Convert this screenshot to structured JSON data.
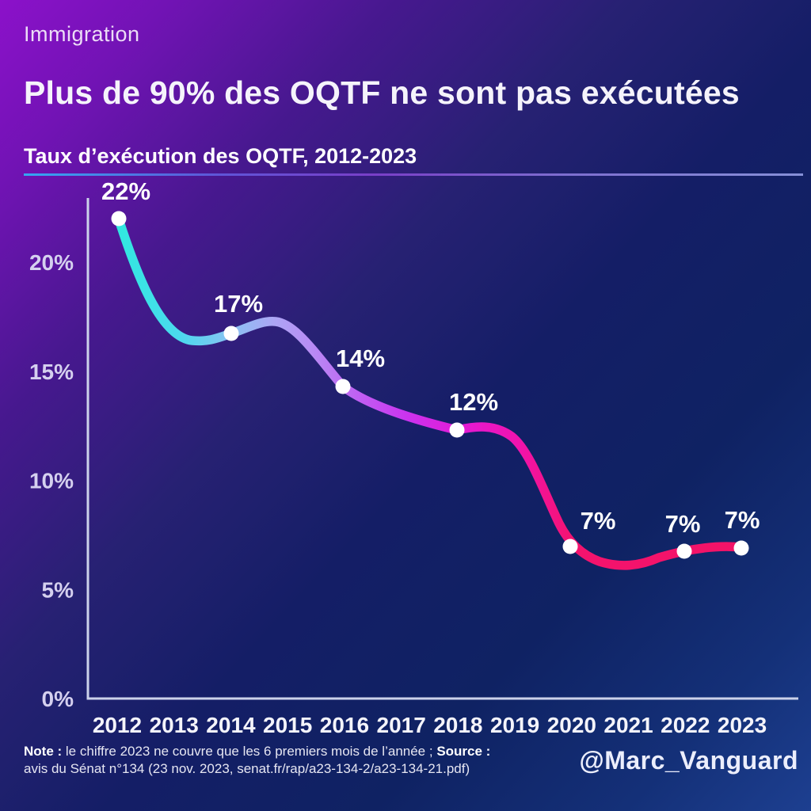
{
  "page": {
    "category": "Immigration",
    "title": "Plus de 90% des OQTF ne sont pas exécutées",
    "subtitle": "Taux d’exécution des OQTF, 2012-2023",
    "handle": "@Marc_Vanguard",
    "footer": {
      "note_label": "Note :",
      "note_text": "le chiffre 2023 ne couvre que les 6 premiers mois de l’année ;",
      "source_label": "Source :",
      "source_text": "avis du Sénat n°134 (23 nov. 2023, senat.fr/rap/a23-134-2/a23-134-21.pdf)"
    }
  },
  "colors": {
    "bg_top_left": "#8c11ca",
    "bg_mid": "#141e66",
    "bg_bottom_right": "#1d3f90",
    "accent_divider_left": "#35a7f2",
    "accent_divider_right": "#8690d8",
    "axis": "#ccd2ea",
    "tick_label": "#d5d0ef",
    "value_label": "#ffffff",
    "line_gradient": [
      "#31e7e0",
      "#4cd9ee",
      "#8ac2f2",
      "#ada5f5",
      "#b88bf4",
      "#bf62f2",
      "#ca34ef",
      "#e31ad5",
      "#f113ae",
      "#f4136e",
      "#f31367"
    ]
  },
  "chart_data": {
    "type": "line",
    "title": "Taux d’exécution des OQTF, 2012-2023",
    "x": [
      2012,
      2014,
      2016,
      2018,
      2020,
      2022,
      2023
    ],
    "values": [
      22,
      17,
      14,
      12,
      7,
      7,
      7
    ],
    "point_labels": [
      "22%",
      "17%",
      "14%",
      "12%",
      "7%",
      "7%",
      "7%"
    ],
    "categories": [
      "2012",
      "2013",
      "2014",
      "2015",
      "2016",
      "2017",
      "2018",
      "2019",
      "2020",
      "2021",
      "2022",
      "2023"
    ],
    "y_ticks": [
      "0%",
      "5%",
      "10%",
      "15%",
      "20%"
    ],
    "y_tick_values": [
      0,
      5,
      10,
      15,
      20
    ],
    "xlabel": "",
    "ylabel": "",
    "ylim": [
      0,
      23
    ],
    "grid": false,
    "legend": false,
    "smoothing": "spline",
    "annotation": "le chiffre 2023 ne couvre que les 6 premiers mois de l’année"
  }
}
